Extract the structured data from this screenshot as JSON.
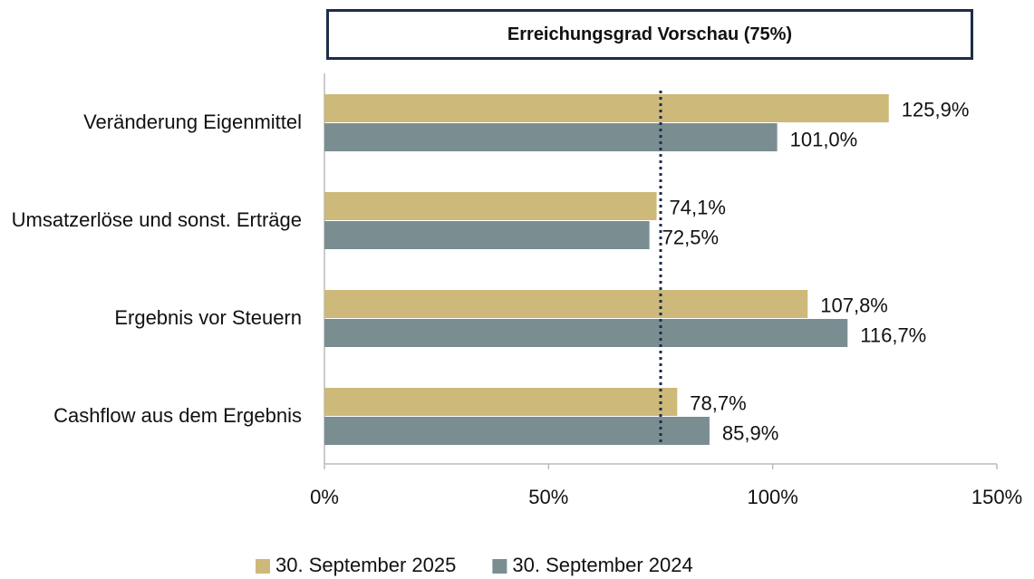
{
  "chart_data": {
    "type": "hbar",
    "title": "Erreichungsgrad Vorschau (75%)",
    "categories": [
      "Veränderung Eigenmittel",
      "Umsatzerlöse und sonst. Erträge",
      "Ergebnis vor Steuern",
      "Cashflow aus dem Ergebnis"
    ],
    "series": [
      {
        "name": "30. September 2025",
        "color": "#cdb97a",
        "values": [
          125.9,
          74.1,
          107.8,
          78.7
        ],
        "value_labels": [
          "125,9%",
          "74,1%",
          "107,8%",
          "78,7%"
        ]
      },
      {
        "name": "30. September 2024",
        "color": "#7a8e92",
        "values": [
          101.0,
          72.5,
          116.7,
          85.9
        ],
        "value_labels": [
          "101,0%",
          "72,5%",
          "116,7%",
          "85,9%"
        ]
      }
    ],
    "xlim": [
      0,
      150
    ],
    "xticks": [
      {
        "value": 0,
        "label": "0%"
      },
      {
        "value": 50,
        "label": "50%"
      },
      {
        "value": 100,
        "label": "100%"
      },
      {
        "value": 150,
        "label": "150%"
      }
    ],
    "reference_line": 75,
    "reference_color": "#1f2d4a",
    "legend": "bottom"
  }
}
